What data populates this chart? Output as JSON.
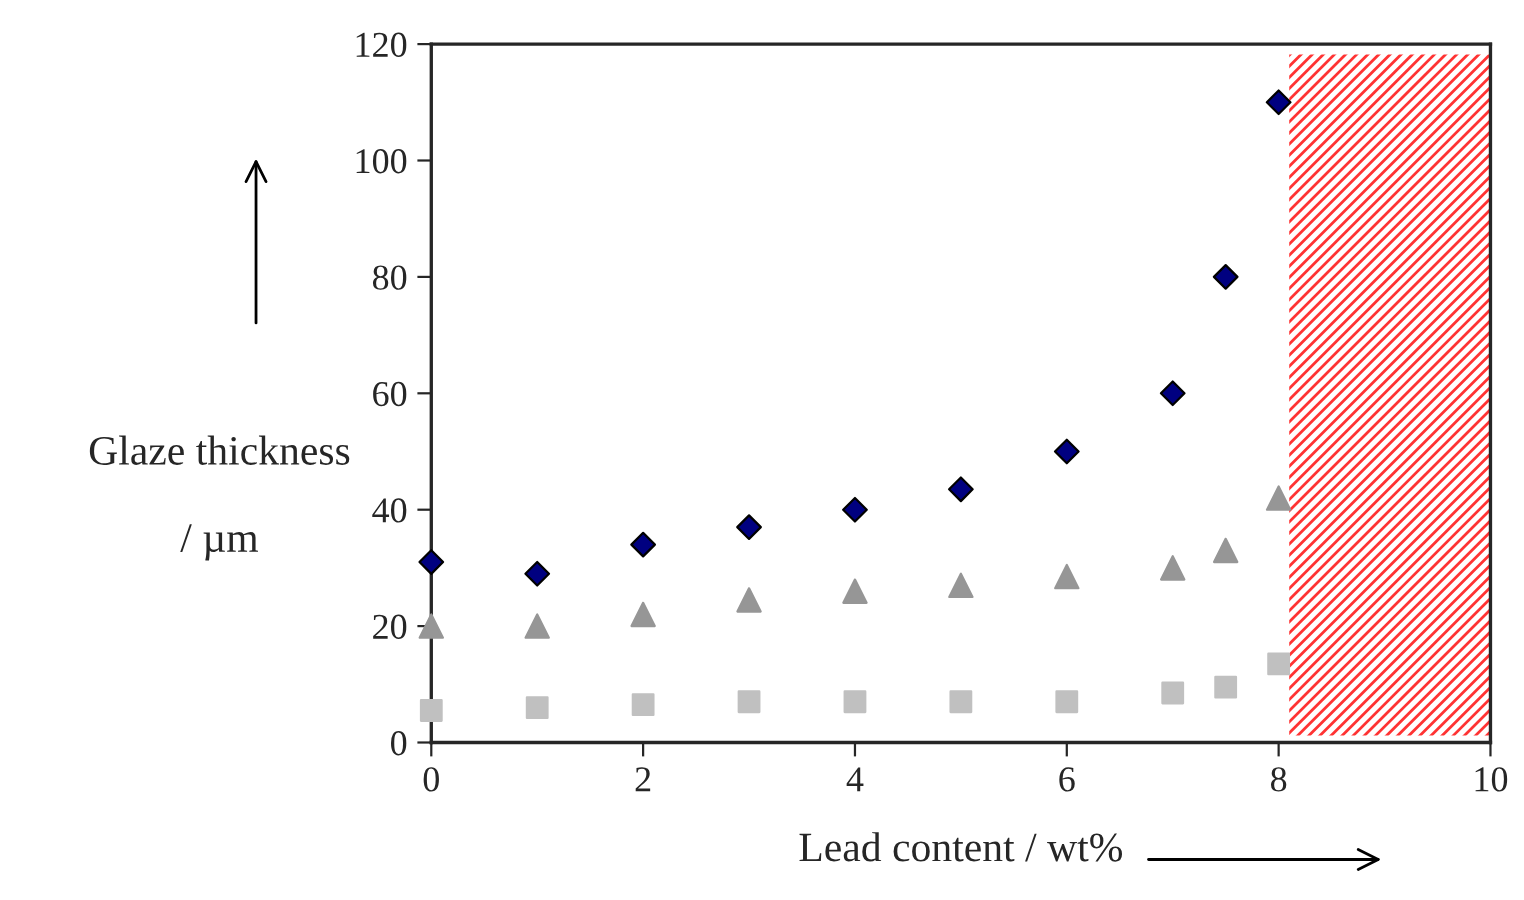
{
  "chart_data": {
    "type": "scatter",
    "xlabel": "Lead content / wt%",
    "ylabel": "Glaze thickness\n\n/ µm",
    "xlim": [
      0,
      10
    ],
    "xticks": [
      0,
      2,
      4,
      6,
      8,
      10
    ],
    "ylim": [
      0,
      120
    ],
    "yticks": [
      0,
      20,
      40,
      60,
      80,
      100,
      120
    ],
    "grid": false,
    "legend": false,
    "series": [
      {
        "color": "#000080",
        "marker": "diamond",
        "x": [
          0,
          1,
          2,
          3,
          4,
          5,
          6,
          7,
          7.5,
          8
        ],
        "values": [
          31,
          29,
          34,
          37,
          40,
          43.5,
          50,
          60,
          80,
          110
        ]
      },
      {
        "color": "#969696",
        "marker": "triangle",
        "x": [
          0,
          1,
          2,
          3,
          4,
          5,
          6,
          7,
          7.5,
          8
        ],
        "values": [
          20,
          20,
          22,
          24.5,
          26,
          27,
          28.5,
          30,
          33,
          42
        ]
      },
      {
        "color": "#c0c0c0",
        "marker": "square",
        "x": [
          0,
          1,
          2,
          3,
          4,
          5,
          6,
          7,
          7.5,
          8
        ],
        "values": [
          5.5,
          6,
          6.5,
          7,
          7,
          7,
          7,
          8.5,
          9.5,
          13.5
        ]
      }
    ],
    "bands": [
      {
        "axis": "x",
        "from": 8.1,
        "to": 10,
        "color": "#ff3333"
      }
    ]
  }
}
